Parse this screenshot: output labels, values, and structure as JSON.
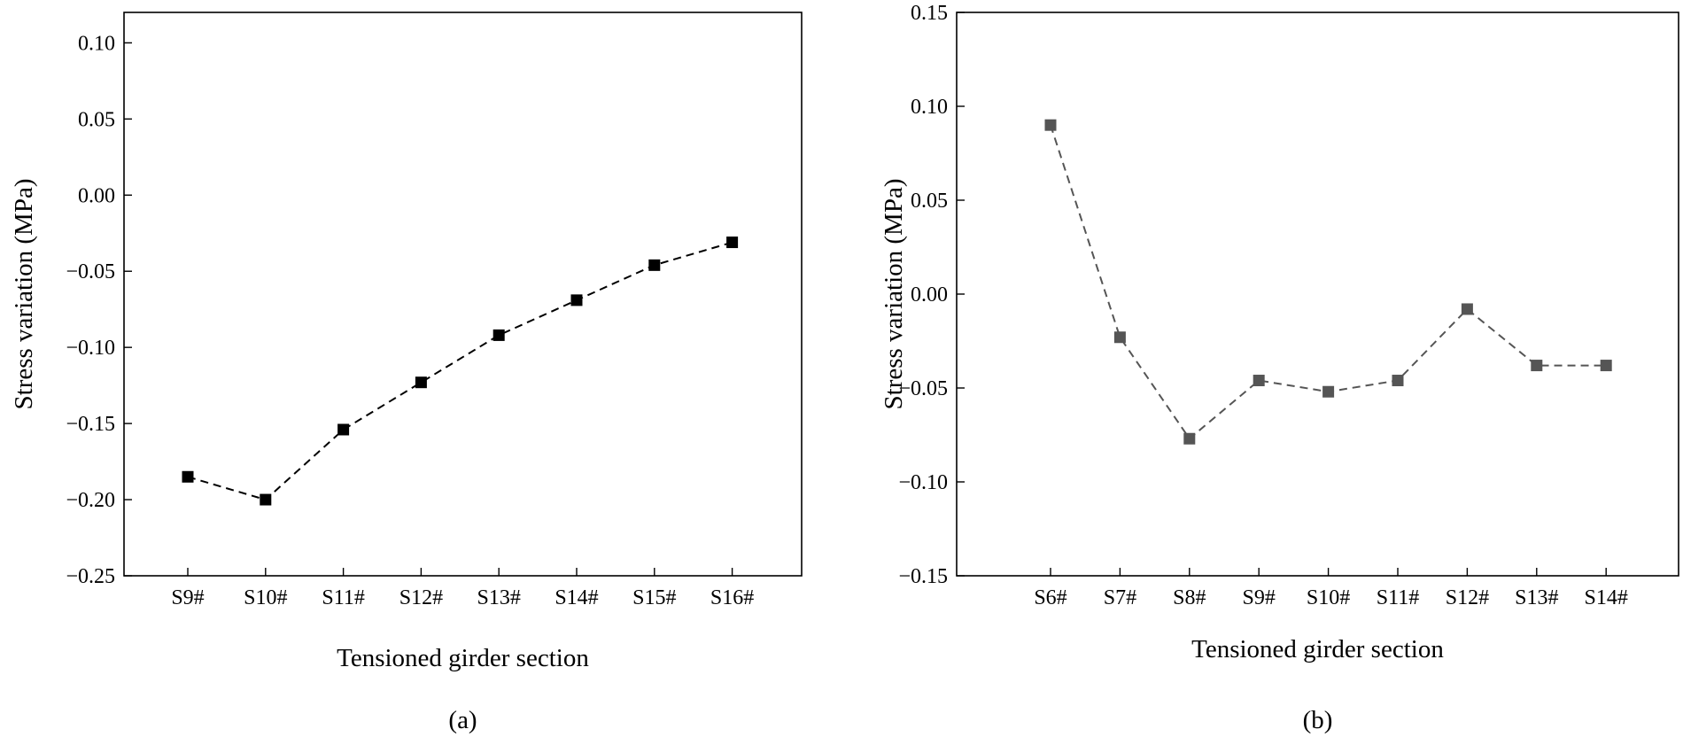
{
  "chart_data": [
    {
      "type": "line",
      "panel_label": "(a)",
      "xlabel": "Tensioned girder section",
      "ylabel": "Stress variation (MPa)",
      "categories": [
        "S9#",
        "S10#",
        "S11#",
        "S12#",
        "S13#",
        "S14#",
        "S15#",
        "S16#"
      ],
      "ylim": [
        -0.25,
        0.12
      ],
      "yticks": [
        -0.25,
        -0.2,
        -0.15,
        -0.1,
        -0.05,
        0.0,
        0.05,
        0.1
      ],
      "ytick_labels": [
        "−0.25",
        "−0.20",
        "−0.15",
        "−0.10",
        "−0.05",
        "0.00",
        "0.05",
        "0.10"
      ],
      "grid": false,
      "series": [
        {
          "values": [
            -0.185,
            -0.2,
            -0.154,
            -0.123,
            -0.092,
            -0.069,
            -0.046,
            -0.031
          ],
          "color": "#000000",
          "marker": "square",
          "line_style": "dashed"
        }
      ]
    },
    {
      "type": "line",
      "panel_label": "(b)",
      "xlabel": "Tensioned girder section",
      "ylabel": "Stress variation (MPa)",
      "categories": [
        "S6#",
        "S7#",
        "S8#",
        "S9#",
        "S10#",
        "S11#",
        "S12#",
        "S13#",
        "S14#"
      ],
      "ylim": [
        -0.15,
        0.15
      ],
      "yticks": [
        -0.15,
        -0.1,
        -0.05,
        0.0,
        0.05,
        0.1,
        0.15
      ],
      "ytick_labels": [
        "−0.15",
        "−0.10",
        "−0.05",
        "0.00",
        "0.05",
        "0.10",
        "0.15"
      ],
      "grid": false,
      "series": [
        {
          "values": [
            0.09,
            -0.023,
            -0.077,
            -0.046,
            -0.052,
            -0.046,
            -0.008,
            -0.038,
            -0.038
          ],
          "color": "#555555",
          "marker": "square",
          "line_style": "dashed"
        }
      ]
    }
  ]
}
